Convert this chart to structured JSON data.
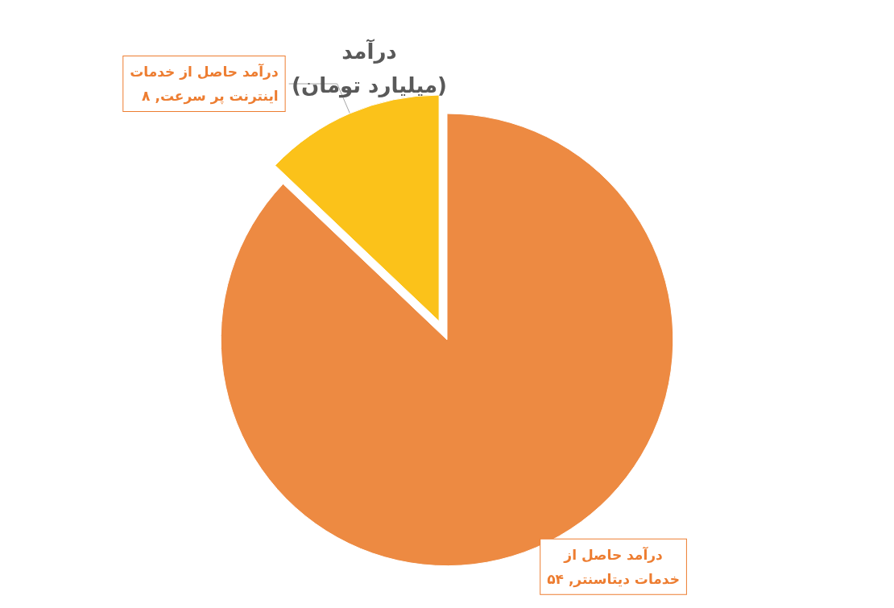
{
  "chart_data": {
    "type": "pie",
    "title": "درآمد\n(میلیارد تومان)",
    "categories": [
      "درآمد حاصل از خدمات اینترنت پر سرعت",
      "درآمد حاصل از خدمات دیتاسنتر"
    ],
    "values": [
      8,
      54
    ],
    "value_labels": [
      "۸",
      "۵۴"
    ],
    "colors": [
      "#fbc21a",
      "#ed8a42"
    ]
  }
}
